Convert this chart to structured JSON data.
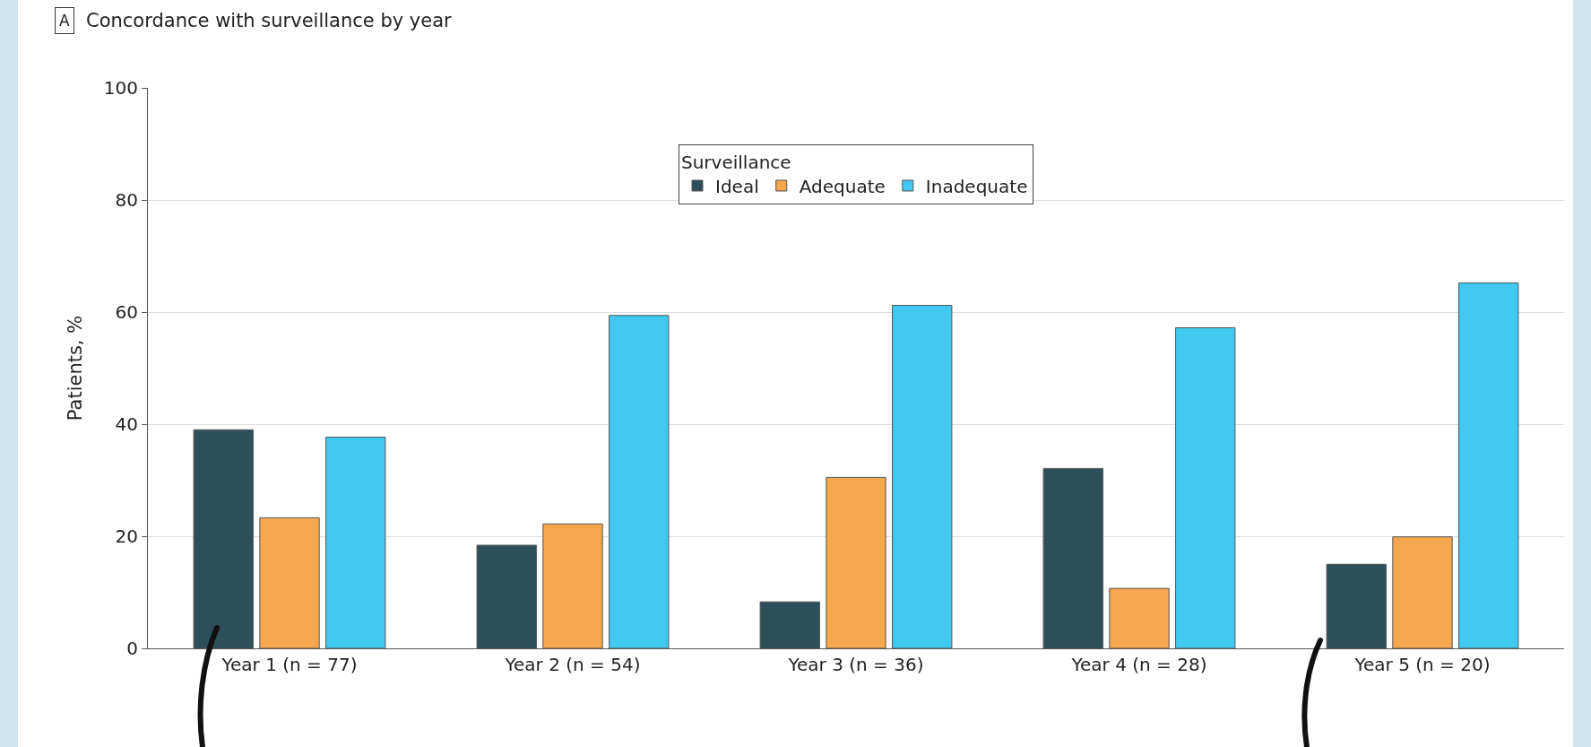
{
  "chart_data": {
    "type": "bar",
    "title": "Concordance with surveillance by year",
    "annotations": [
      "A"
    ],
    "ylabel": "Patients, %",
    "legend_title": "Surveillance",
    "categories": [
      "Year 1 (n = 77)",
      "Year 2 (n = 54)",
      "Year 3 (n = 36)",
      "Year 4 (n = 28)",
      "Year 5 (n = 20)"
    ],
    "series": [
      {
        "name": "Ideal",
        "color": "#2c4f5a",
        "values": [
          39,
          18.4,
          8.3,
          32.1,
          15
        ]
      },
      {
        "name": "Adequate",
        "color": "#f5a74e",
        "values": [
          23.3,
          22.2,
          30.5,
          10.7,
          19.9
        ]
      },
      {
        "name": "Inadequate",
        "color": "#40c8f0",
        "values": [
          37.7,
          59.4,
          61.2,
          57.2,
          65.2
        ]
      }
    ],
    "ylim": [
      0,
      100
    ],
    "yticks": [
      0,
      20,
      40,
      60,
      80,
      100
    ],
    "grid": "y",
    "legend": "top"
  }
}
